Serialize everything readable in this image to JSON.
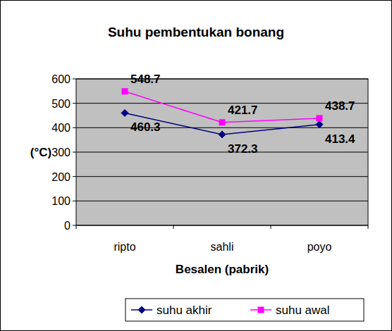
{
  "chart_data": {
    "type": "line",
    "title": "Suhu pembentukan bonang",
    "x_label": "Besalen (pabrik)",
    "y_label": "(°C)",
    "categories": [
      "ripto",
      "sahli",
      "poyo"
    ],
    "series": [
      {
        "name": "suhu akhir",
        "color": "#000080",
        "marker": "diamond",
        "values": [
          460.3,
          372.3,
          413.4
        ]
      },
      {
        "name": "suhu awal",
        "color": "#ff00ff",
        "marker": "square",
        "values": [
          548.7,
          421.7,
          438.7
        ]
      }
    ],
    "ylim": [
      0,
      600
    ],
    "yticks": [
      0,
      100,
      200,
      300,
      400,
      500,
      600
    ],
    "grid": true,
    "data_labels": true,
    "legend": "bottom"
  }
}
